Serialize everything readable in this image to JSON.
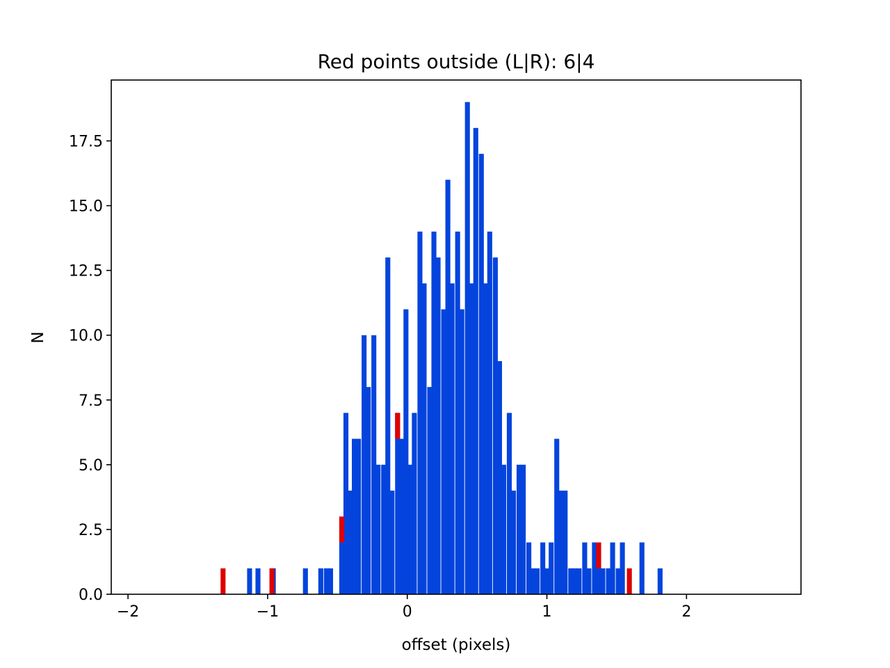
{
  "chart_data": {
    "type": "bar",
    "title": "Red points outside (L|R): 6|4",
    "xlabel": "offset (pixels)",
    "ylabel": "N",
    "xlim": [
      -2.12,
      2.82
    ],
    "ylim": [
      0,
      19.85
    ],
    "bin_width": 0.034,
    "x_ticks": [
      -2,
      -1,
      0,
      1,
      2
    ],
    "x_tick_labels": [
      "−2",
      "−1",
      "0",
      "1",
      "2"
    ],
    "y_ticks": [
      0,
      2.5,
      5,
      7.5,
      10,
      12.5,
      15,
      17.5
    ],
    "y_tick_labels": [
      "0.0",
      "2.5",
      "5.0",
      "7.5",
      "10.0",
      "12.5",
      "15.0",
      "17.5"
    ],
    "colors": {
      "blue": "#0444dd",
      "red": "#dd0000"
    },
    "series": [
      {
        "color": "#0444dd",
        "x": [
          -1.13,
          -1.07,
          -0.96,
          -0.73,
          -0.62,
          -0.58,
          -0.55,
          -0.47,
          -0.44,
          -0.41,
          -0.38,
          -0.35,
          -0.31,
          -0.28,
          -0.24,
          -0.21,
          -0.17,
          -0.14,
          -0.11,
          -0.07,
          -0.04,
          -0.01,
          0.02,
          0.05,
          0.09,
          0.12,
          0.16,
          0.19,
          0.22,
          0.26,
          0.29,
          0.32,
          0.36,
          0.39,
          0.43,
          0.46,
          0.49,
          0.53,
          0.56,
          0.59,
          0.63,
          0.66,
          0.69,
          0.73,
          0.76,
          0.8,
          0.83,
          0.87,
          0.9,
          0.93,
          0.97,
          1.0,
          1.03,
          1.07,
          1.1,
          1.13,
          1.17,
          1.2,
          1.23,
          1.27,
          1.3,
          1.34,
          1.37,
          1.4,
          1.44,
          1.47,
          1.51,
          1.54,
          1.68,
          1.81
        ],
        "values": [
          1,
          1,
          1,
          1,
          1,
          1,
          1,
          2,
          7,
          4,
          6,
          6,
          10,
          8,
          10,
          5,
          5,
          13,
          4,
          7,
          6,
          11,
          5,
          7,
          14,
          12,
          8,
          14,
          13,
          11,
          16,
          12,
          14,
          11,
          19,
          12,
          18,
          17,
          12,
          14,
          13,
          9,
          5,
          7,
          4,
          5,
          5,
          2,
          1,
          1,
          2,
          1,
          2,
          6,
          4,
          4,
          1,
          1,
          1,
          2,
          1,
          2,
          2,
          1,
          1,
          2,
          1,
          2,
          2,
          1
        ]
      },
      {
        "color": "#dd0000",
        "x": [
          -1.32,
          -0.97,
          -0.47,
          -0.07,
          1.37,
          1.59
        ],
        "values": [
          1,
          1,
          1,
          1,
          1,
          1
        ],
        "bottoms": [
          0,
          0,
          2,
          6,
          1,
          0
        ]
      }
    ]
  }
}
